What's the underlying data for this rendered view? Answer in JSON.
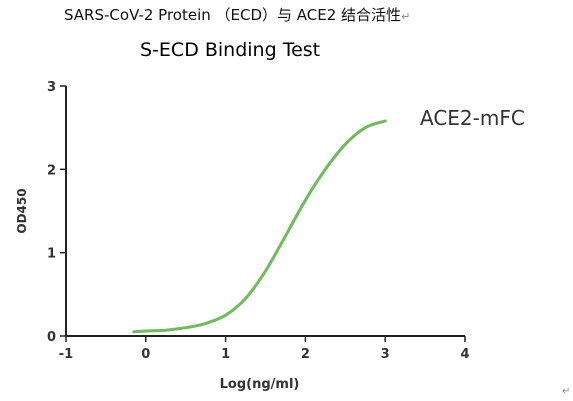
{
  "document": {
    "heading": "SARS-CoV-2 Protein （ECD）与 ACE2 结合活性",
    "paragraph_mark": "↵"
  },
  "chart_data": {
    "type": "line",
    "title": "S-ECD Binding Test",
    "xlabel": "Log(ng/ml)",
    "ylabel": "OD450",
    "xlim": [
      -1,
      4
    ],
    "ylim": [
      0,
      3
    ],
    "xticks": [
      "-1",
      "0",
      "1",
      "2",
      "3",
      "4"
    ],
    "yticks": [
      "0",
      "1",
      "2",
      "3"
    ],
    "grid": false,
    "series": [
      {
        "name": "ACE2-mFC",
        "color": "#6dbb5a",
        "x": [
          -0.15,
          0.0,
          0.25,
          0.5,
          0.75,
          1.0,
          1.25,
          1.5,
          1.75,
          2.0,
          2.25,
          2.5,
          2.75,
          3.0
        ],
        "y": [
          0.05,
          0.06,
          0.07,
          0.1,
          0.15,
          0.25,
          0.45,
          0.78,
          1.2,
          1.63,
          2.0,
          2.3,
          2.5,
          2.58
        ]
      }
    ]
  }
}
